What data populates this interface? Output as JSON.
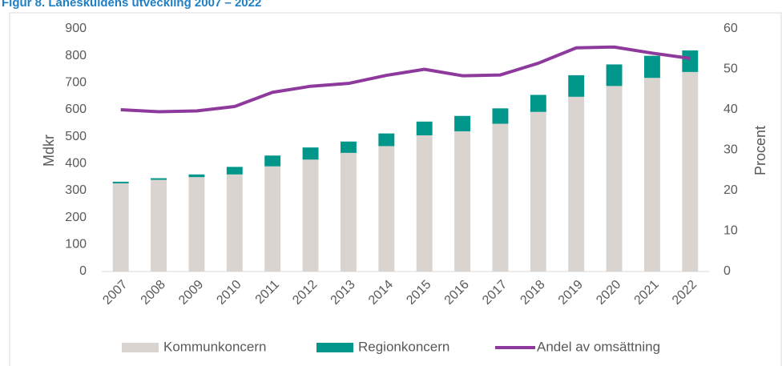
{
  "chart_data": {
    "type": "bar",
    "title": "Figur 8. Låneskuldens utveckling 2007 – 2022",
    "ylabel": "Mdkr",
    "y2label": "Procent",
    "categories": [
      "2007",
      "2008",
      "2009",
      "2010",
      "2011",
      "2012",
      "2013",
      "2014",
      "2015",
      "2016",
      "2017",
      "2018",
      "2019",
      "2020",
      "2021",
      "2022"
    ],
    "series": [
      {
        "name": "Kommunkoncern",
        "type": "bar",
        "color": "#d9d4cf",
        "values": [
          327,
          340,
          350,
          360,
          390,
          415,
          440,
          465,
          505,
          520,
          548,
          592,
          648,
          688,
          718,
          740
        ]
      },
      {
        "name": "Regionkoncern",
        "type": "bar",
        "color": "#00968a",
        "values": [
          6,
          6,
          10,
          28,
          40,
          45,
          42,
          47,
          51,
          57,
          57,
          63,
          80,
          80,
          82,
          80
        ]
      },
      {
        "name": "Andel av omsättning",
        "type": "line",
        "axis": "y2",
        "color": "#8e3a9d",
        "values": [
          40,
          39.5,
          39.7,
          40.8,
          44.3,
          45.8,
          46.5,
          48.5,
          50,
          48.4,
          48.6,
          51.5,
          55.3,
          55.5,
          54,
          52.7
        ]
      }
    ],
    "stacked": true,
    "ylim": [
      0,
      900
    ],
    "yticks": [
      0,
      100,
      200,
      300,
      400,
      500,
      600,
      700,
      800,
      900
    ],
    "y2lim": [
      0,
      60
    ],
    "y2ticks": [
      0,
      10,
      20,
      30,
      40,
      50,
      60
    ],
    "legend": "bottom",
    "grid": false
  }
}
